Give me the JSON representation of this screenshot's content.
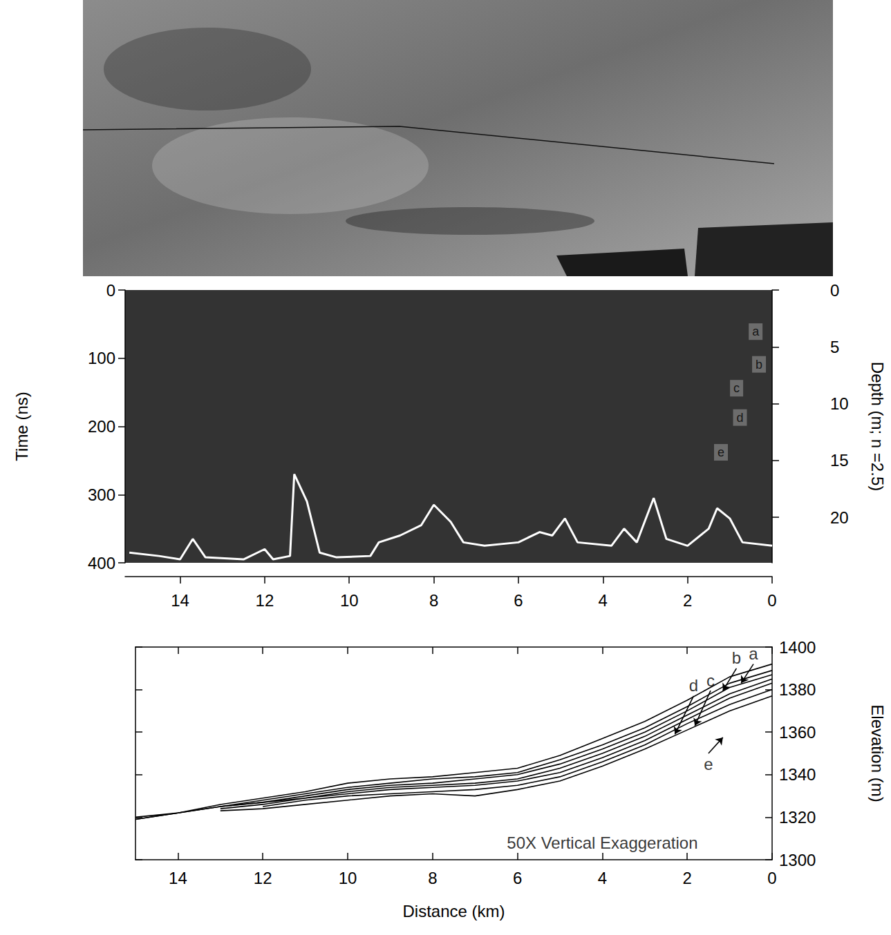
{
  "chart_data": [
    {
      "type": "line",
      "ylabel": "Time (ns)",
      "y2label": "Depth (m; n =2.5)",
      "xlim": [
        0,
        15.3
      ],
      "xticks": [
        0,
        2,
        4,
        6,
        8,
        10,
        12,
        14
      ],
      "ylim": [
        0,
        400
      ],
      "yticks": [
        0,
        100,
        200,
        300,
        400
      ],
      "y2lim": [
        0,
        24
      ],
      "y2ticks": [
        0,
        5,
        10,
        15,
        20
      ],
      "x": [
        0,
        0.7,
        1.0,
        1.3,
        1.5,
        2.0,
        2.5,
        2.8,
        3.2,
        3.5,
        3.8,
        4.6,
        4.9,
        5.2,
        5.5,
        6.0,
        6.8,
        7.3,
        7.6,
        8.0,
        8.3,
        8.8,
        9.3,
        9.5,
        10.3,
        10.7,
        11.0,
        11.3,
        11.4,
        11.8,
        12.0,
        12.5,
        13.4,
        13.7,
        14.0,
        14.5,
        15.2
      ],
      "series": [
        {
          "color": "#ffffff",
          "values": [
            375,
            370,
            335,
            320,
            350,
            375,
            365,
            305,
            370,
            350,
            375,
            370,
            335,
            360,
            355,
            370,
            375,
            370,
            340,
            315,
            345,
            360,
            370,
            390,
            392,
            385,
            310,
            270,
            390,
            395,
            380,
            395,
            392,
            365,
            395,
            390,
            385
          ]
        }
      ],
      "annotations": [
        {
          "text": "a",
          "x": 0.39,
          "y": 61
        },
        {
          "text": "b",
          "x": 0.31,
          "y": 109
        },
        {
          "text": "c",
          "x": 0.84,
          "y": 144
        },
        {
          "text": "d",
          "x": 0.76,
          "y": 187
        },
        {
          "text": "e",
          "x": 1.21,
          "y": 238
        }
      ]
    },
    {
      "type": "line",
      "xlabel": "Distance (km)",
      "ylabel": "Elevation (m)",
      "xlim": [
        0,
        15
      ],
      "xticks": [
        0,
        2,
        4,
        6,
        8,
        10,
        12,
        14
      ],
      "ylim": [
        1300,
        1400
      ],
      "yticks": [
        1300,
        1320,
        1340,
        1360,
        1380,
        1400
      ],
      "x": [
        0,
        1,
        2,
        3,
        4,
        5,
        6,
        7,
        8,
        9,
        10,
        11,
        12,
        13,
        14,
        15
      ],
      "series": [
        {
          "color": "#000000",
          "values": [
            1392,
            1386,
            1375,
            1365,
            1357,
            1349,
            1343,
            1341,
            1339,
            1338,
            1336,
            1332,
            1329,
            1326,
            1322,
            1319
          ]
        },
        {
          "color": "#000000",
          "values": [
            1389,
            1383,
            1372,
            1362,
            1354,
            1347,
            1341,
            1339,
            1338,
            1336,
            1334,
            1331,
            1328,
            1325,
            1322,
            1319
          ]
        },
        {
          "color": "#000000",
          "values": [
            1387,
            1381,
            1370,
            1360,
            1352,
            1345,
            1340,
            1338,
            1336,
            1335,
            1333,
            1330,
            1327,
            1325,
            1322,
            1320
          ]
        },
        {
          "color": "#000000",
          "values": [
            1385,
            1378,
            1368,
            1358,
            1350,
            1343,
            1338,
            1336,
            1335,
            1334,
            1332,
            1329,
            1327,
            1325,
            null,
            null
          ]
        },
        {
          "color": "#000000",
          "values": [
            1383,
            1376,
            1366,
            1356,
            1348,
            1341,
            1337,
            1335,
            1334,
            1333,
            1331,
            1329,
            1326,
            1324,
            null,
            null
          ]
        },
        {
          "color": "#000000",
          "values": [
            1380,
            1373,
            1364,
            1354,
            1346,
            1339,
            1335,
            1333,
            1332,
            1331,
            1330,
            1328,
            1325,
            null,
            null,
            null
          ]
        },
        {
          "color": "#000000",
          "values": [
            1377,
            1370,
            1361,
            1352,
            1344,
            1337,
            1333,
            1330,
            1331,
            1330,
            1328,
            1326,
            1324,
            1323,
            null,
            null
          ]
        }
      ],
      "annotations": [
        {
          "text": "a",
          "x": 0.44,
          "y": 1392,
          "arrow_to": [
            0.73,
            1383
          ]
        },
        {
          "text": "b",
          "x": 0.84,
          "y": 1390,
          "arrow_to": [
            1.16,
            1379.5
          ]
        },
        {
          "text": "c",
          "x": 1.45,
          "y": 1379.5,
          "arrow_to": [
            1.82,
            1363
          ]
        },
        {
          "text": "d",
          "x": 1.85,
          "y": 1377,
          "arrow_to": [
            2.29,
            1359
          ]
        },
        {
          "text": "e",
          "x": 1.5,
          "y": 1350,
          "arrow_to": [
            1.16,
            1357.5
          ]
        },
        {
          "text": "50X Vertical Exaggeration",
          "x": 4.0,
          "y": 1308
        }
      ]
    }
  ]
}
